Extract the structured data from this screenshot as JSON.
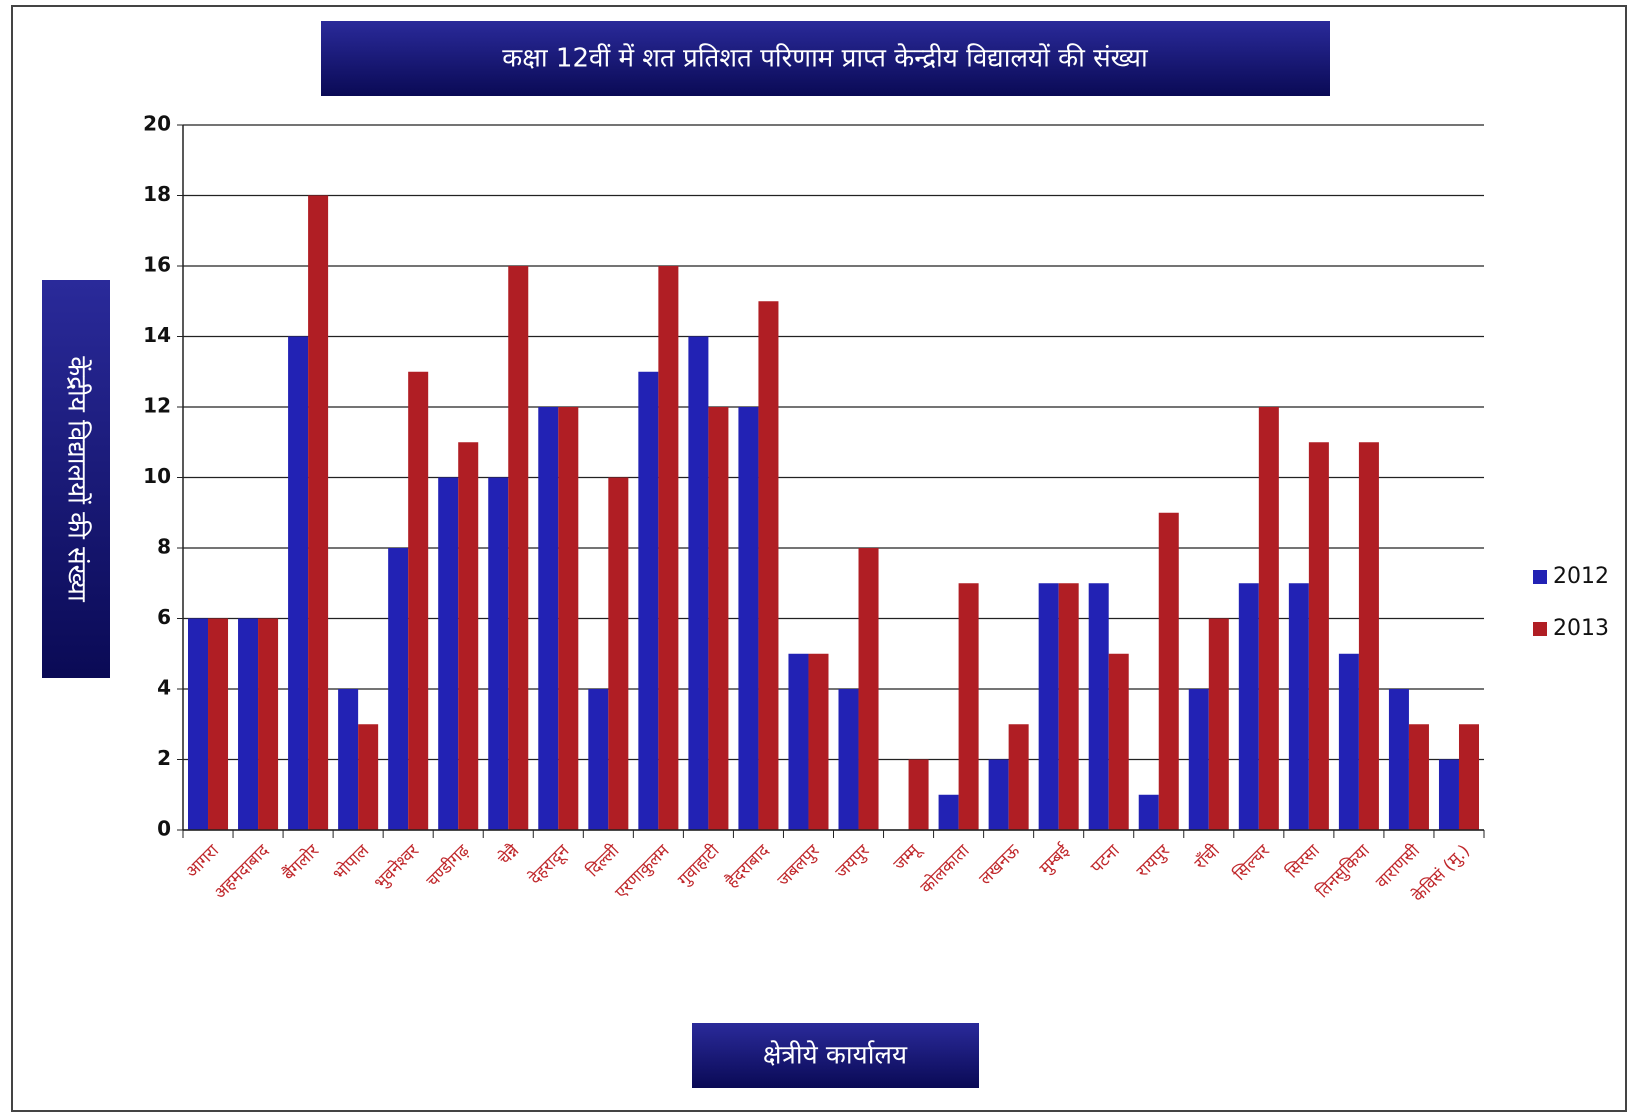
{
  "chart_data": {
    "type": "bar",
    "title": "कक्षा 12वीं में शत प्रतिशत परिणाम प्राप्त केन्द्रीय विद्यालयों की संख्या",
    "y_label": "केंद्रीय विद्यालयों की संख्या",
    "x_label": "क्षेत्रीये कार्यालय",
    "categories": [
      "आगरा",
      "अहमदाबाद",
      "बैंगलोर",
      "भोपाल",
      "भुवनेश्वर",
      "चण्डीगढ़",
      "चेन्नै",
      "देहरादून",
      "दिल्ली",
      "एरणाकुलम",
      "गुवाहाटी",
      "हैदराबाद",
      "जबलपुर",
      "जयपुर",
      "जम्मू",
      "कोलकाता",
      "लखनऊ",
      "मुम्बई",
      "पटना",
      "रायपुर",
      "राँची",
      "सिल्चर",
      "सिरसा",
      "तिनसुकिया",
      "वाराणसी",
      "केविसं (मु.)"
    ],
    "series": [
      {
        "name": "2012",
        "color": "#2222b4",
        "values": [
          6,
          6,
          14,
          4,
          8,
          10,
          10,
          12,
          4,
          13,
          14,
          12,
          5,
          4,
          0,
          1,
          2,
          7,
          7,
          1,
          4,
          7,
          7,
          5,
          4,
          2
        ]
      },
      {
        "name": "2013",
        "color": "#b01e24",
        "values": [
          6,
          6,
          18,
          3,
          13,
          11,
          16,
          12,
          10,
          16,
          12,
          15,
          5,
          8,
          2,
          7,
          3,
          7,
          5,
          9,
          6,
          12,
          11,
          11,
          3,
          3
        ]
      }
    ],
    "ylim": [
      0,
      20
    ],
    "yticks": [
      0,
      2,
      4,
      6,
      8,
      10,
      12,
      14,
      16,
      18,
      20
    ],
    "grid": true,
    "legend": "right"
  }
}
